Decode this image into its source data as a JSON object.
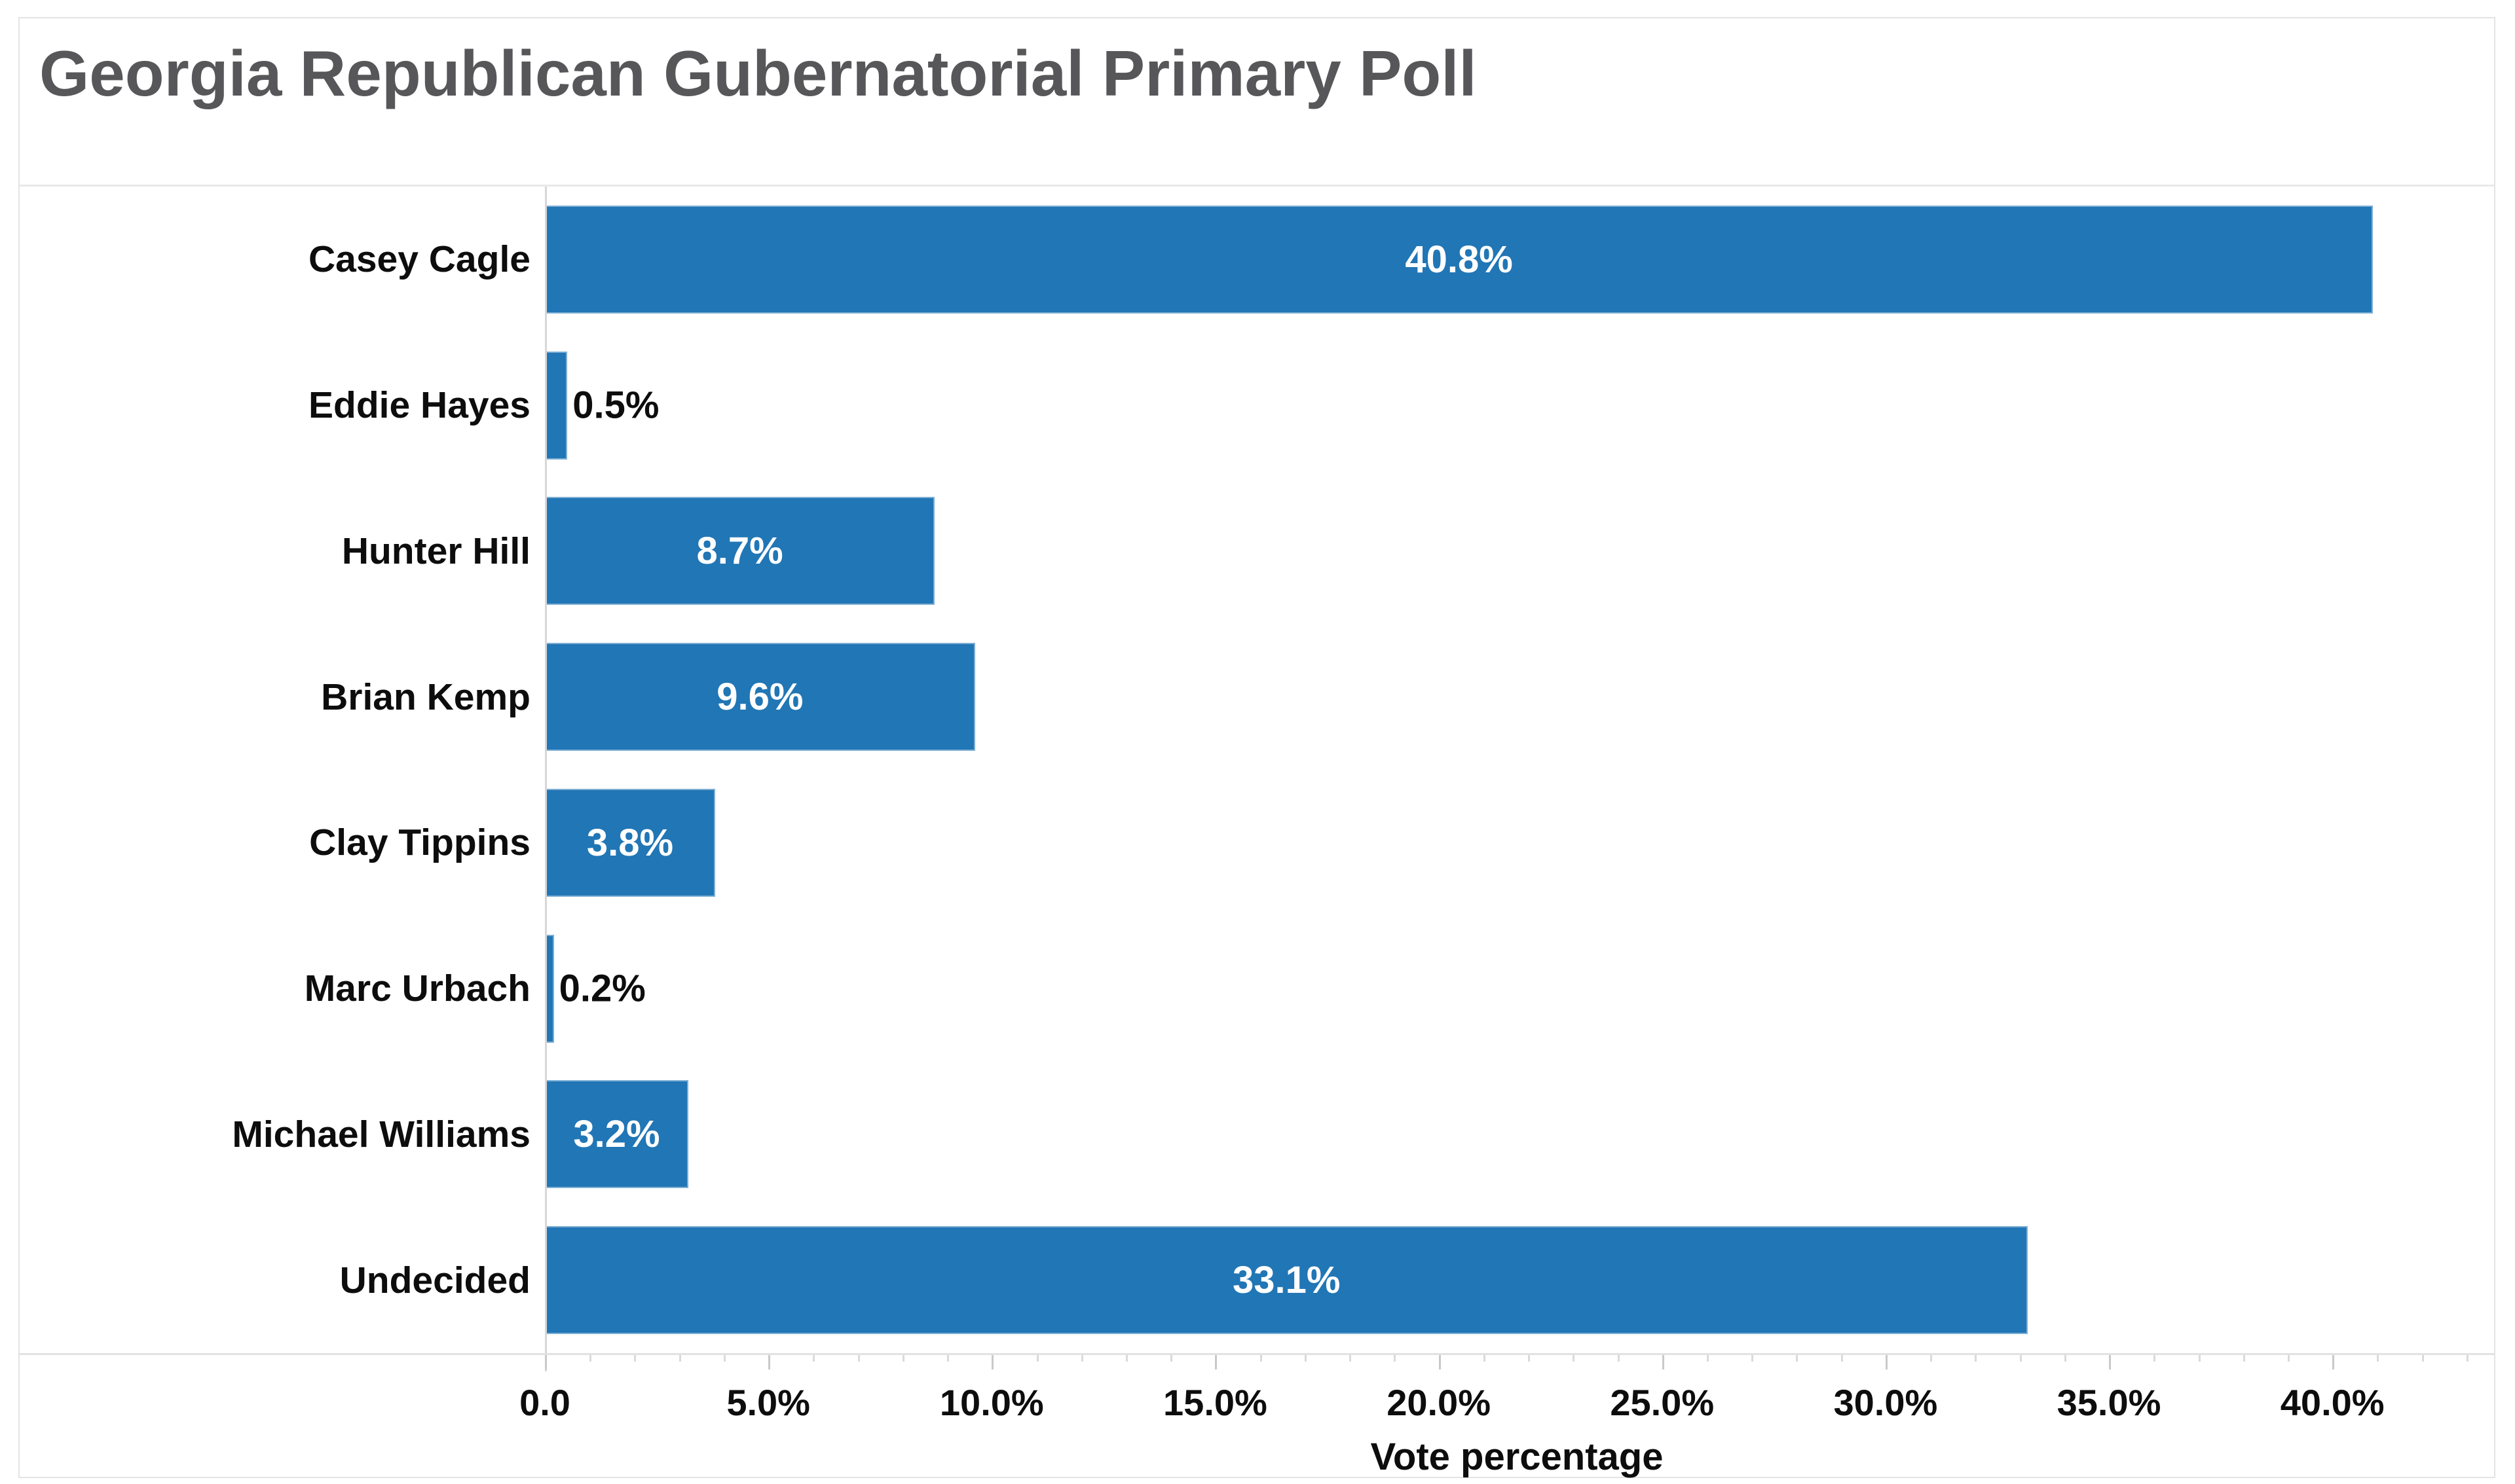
{
  "chart": {
    "title": "Georgia Republican Gubernatorial Primary Poll",
    "x_axis_title": "Vote percentage"
  },
  "chart_data": {
    "type": "bar",
    "orientation": "horizontal",
    "title": "Georgia Republican Gubernatorial Primary Poll",
    "categories": [
      "Casey Cagle",
      "Eddie Hayes",
      "Hunter Hill",
      "Brian Kemp",
      "Clay Tippins",
      "Marc Urbach",
      "Michael Williams",
      "Undecided"
    ],
    "values": [
      40.8,
      0.5,
      8.7,
      9.6,
      3.8,
      0.2,
      3.2,
      33.1
    ],
    "value_labels": [
      "40.8%",
      "0.5%",
      "8.7%",
      "9.6%",
      "3.8%",
      "0.2%",
      "3.2%",
      "33.1%"
    ],
    "value_label_inside": [
      true,
      false,
      true,
      true,
      true,
      false,
      true,
      true
    ],
    "xlabel": "Vote percentage",
    "ylabel": "",
    "xlim": [
      0,
      43.5
    ],
    "x_tick_labels": [
      "0.0",
      "5.0%",
      "10.0%",
      "15.0%",
      "20.0%",
      "25.0%",
      "30.0%",
      "35.0%",
      "40.0%"
    ],
    "x_major_tick_step": 5,
    "x_minor_tick_step": 1,
    "grid": false,
    "legend": false,
    "bar_color": "#2176b5",
    "value_label_color_inside": "#ffffff",
    "value_label_color_outside": "#0d0d0d",
    "title_color": "#57575a"
  }
}
